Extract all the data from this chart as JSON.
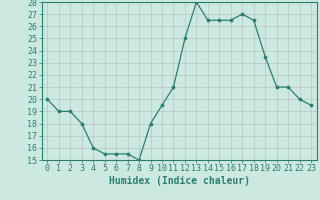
{
  "x": [
    0,
    1,
    2,
    3,
    4,
    5,
    6,
    7,
    8,
    9,
    10,
    11,
    12,
    13,
    14,
    15,
    16,
    17,
    18,
    19,
    20,
    21,
    22,
    23
  ],
  "y": [
    20.0,
    19.0,
    19.0,
    18.0,
    16.0,
    15.5,
    15.5,
    15.5,
    15.0,
    18.0,
    19.5,
    21.0,
    25.0,
    28.0,
    26.5,
    26.5,
    26.5,
    27.0,
    26.5,
    23.5,
    21.0,
    21.0,
    20.0,
    19.5
  ],
  "xlabel": "Humidex (Indice chaleur)",
  "ylim": [
    15,
    28
  ],
  "xlim_left": -0.5,
  "xlim_right": 23.5,
  "yticks": [
    15,
    16,
    17,
    18,
    19,
    20,
    21,
    22,
    23,
    24,
    25,
    26,
    27,
    28
  ],
  "xticks": [
    0,
    1,
    2,
    3,
    4,
    5,
    6,
    7,
    8,
    9,
    10,
    11,
    12,
    13,
    14,
    15,
    16,
    17,
    18,
    19,
    20,
    21,
    22,
    23
  ],
  "line_color": "#2d7d6f",
  "bg_color": "#cce9e1",
  "grid_color": "#b0b0b0",
  "font_color": "#2d7d6f",
  "font_size": 6.0,
  "xlabel_fontsize": 7.0,
  "linewidth": 0.9,
  "markersize": 2.2
}
